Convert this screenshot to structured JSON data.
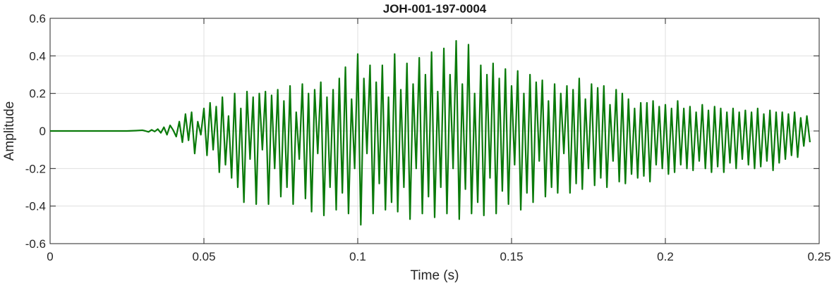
{
  "chart_data": {
    "type": "line",
    "title": "JOH-001-197-0004",
    "xlabel": "Time (s)",
    "ylabel": "Amplitude",
    "xlim": [
      0,
      0.25
    ],
    "ylim": [
      -0.6,
      0.6
    ],
    "x_ticks": [
      0,
      0.05,
      0.1,
      0.15,
      0.2,
      0.25
    ],
    "y_ticks": [
      -0.6,
      -0.4,
      -0.2,
      0,
      0.2,
      0.4,
      0.6
    ],
    "x_tick_labels": [
      "0",
      "0.05",
      "0.1",
      "0.15",
      "0.2",
      "0.25"
    ],
    "y_tick_labels": [
      "-0.6",
      "-0.4",
      "-0.2",
      "0",
      "0.2",
      "0.4",
      "0.6"
    ],
    "grid": true,
    "line_color": "#0a7a0a",
    "series": [
      {
        "x": [
          0.0,
          0.005,
          0.01,
          0.015,
          0.02,
          0.025,
          0.028,
          0.03,
          0.031,
          0.032,
          0.033,
          0.034,
          0.035,
          0.036,
          0.037,
          0.038,
          0.039,
          0.04,
          0.041,
          0.042,
          0.043,
          0.044,
          0.045,
          0.046,
          0.047,
          0.048,
          0.049,
          0.05,
          0.051,
          0.052,
          0.053,
          0.054,
          0.055,
          0.056,
          0.057,
          0.058,
          0.059,
          0.06,
          0.061,
          0.062,
          0.063,
          0.064,
          0.065,
          0.066,
          0.067,
          0.068,
          0.069,
          0.07,
          0.071,
          0.072,
          0.073,
          0.074,
          0.075,
          0.076,
          0.077,
          0.078,
          0.079,
          0.08,
          0.081,
          0.082,
          0.083,
          0.084,
          0.085,
          0.086,
          0.087,
          0.088,
          0.089,
          0.09,
          0.091,
          0.092,
          0.093,
          0.094,
          0.095,
          0.096,
          0.097,
          0.098,
          0.099,
          0.1,
          0.101,
          0.102,
          0.103,
          0.104,
          0.105,
          0.106,
          0.107,
          0.108,
          0.109,
          0.11,
          0.111,
          0.112,
          0.113,
          0.114,
          0.115,
          0.116,
          0.117,
          0.118,
          0.119,
          0.12,
          0.121,
          0.122,
          0.123,
          0.124,
          0.125,
          0.126,
          0.127,
          0.128,
          0.129,
          0.13,
          0.131,
          0.132,
          0.133,
          0.134,
          0.135,
          0.136,
          0.137,
          0.138,
          0.139,
          0.14,
          0.141,
          0.142,
          0.143,
          0.144,
          0.145,
          0.146,
          0.147,
          0.148,
          0.149,
          0.15,
          0.151,
          0.152,
          0.153,
          0.154,
          0.155,
          0.156,
          0.157,
          0.158,
          0.159,
          0.16,
          0.161,
          0.162,
          0.163,
          0.164,
          0.165,
          0.166,
          0.167,
          0.168,
          0.169,
          0.17,
          0.171,
          0.172,
          0.173,
          0.174,
          0.175,
          0.176,
          0.177,
          0.178,
          0.179,
          0.18,
          0.181,
          0.182,
          0.183,
          0.184,
          0.185,
          0.186,
          0.187,
          0.188,
          0.189,
          0.19,
          0.191,
          0.192,
          0.193,
          0.194,
          0.195,
          0.196,
          0.197,
          0.198,
          0.199,
          0.2,
          0.201,
          0.202,
          0.203,
          0.204,
          0.205,
          0.206,
          0.207,
          0.208,
          0.209,
          0.21,
          0.211,
          0.212,
          0.213,
          0.214,
          0.215,
          0.216,
          0.217,
          0.218,
          0.219,
          0.22,
          0.221,
          0.222,
          0.223,
          0.224,
          0.225,
          0.226,
          0.227,
          0.228,
          0.229,
          0.23,
          0.231,
          0.232,
          0.233,
          0.234,
          0.235,
          0.236,
          0.237,
          0.238,
          0.239,
          0.24,
          0.241,
          0.242,
          0.243,
          0.244,
          0.245,
          0.246,
          0.247
        ],
        "y": [
          0.0,
          0.0,
          0.0,
          0.0,
          0.0,
          0.0,
          0.002,
          0.004,
          0.0,
          -0.005,
          0.006,
          -0.003,
          0.01,
          -0.01,
          0.02,
          -0.02,
          0.03,
          0.005,
          -0.03,
          0.05,
          -0.06,
          0.09,
          -0.05,
          0.1,
          -0.12,
          0.05,
          -0.02,
          0.12,
          -0.13,
          0.15,
          -0.1,
          0.13,
          -0.22,
          0.18,
          -0.18,
          0.08,
          -0.25,
          0.2,
          -0.3,
          0.12,
          -0.38,
          0.21,
          -0.15,
          0.18,
          -0.39,
          0.2,
          -0.1,
          0.21,
          -0.39,
          0.19,
          -0.2,
          0.22,
          -0.35,
          0.16,
          -0.3,
          0.24,
          -0.39,
          0.1,
          -0.15,
          0.25,
          -0.36,
          0.2,
          -0.43,
          0.22,
          -0.12,
          0.26,
          -0.45,
          0.18,
          -0.3,
          0.22,
          -0.42,
          0.28,
          -0.33,
          0.34,
          -0.44,
          0.17,
          -0.2,
          0.41,
          -0.5,
          0.28,
          -0.12,
          0.35,
          -0.44,
          0.26,
          -0.28,
          0.35,
          -0.42,
          0.18,
          -0.38,
          0.41,
          -0.43,
          0.22,
          -0.3,
          0.36,
          -0.47,
          0.25,
          -0.2,
          0.39,
          -0.44,
          0.3,
          -0.35,
          0.42,
          -0.46,
          0.21,
          -0.3,
          0.44,
          -0.44,
          0.3,
          -0.2,
          0.48,
          -0.47,
          0.25,
          -0.31,
          0.46,
          -0.44,
          0.2,
          -0.38,
          0.35,
          -0.45,
          0.3,
          -0.25,
          0.36,
          -0.44,
          0.28,
          -0.32,
          0.33,
          -0.39,
          0.24,
          -0.18,
          0.32,
          -0.42,
          0.2,
          -0.33,
          0.3,
          -0.38,
          0.26,
          -0.16,
          0.27,
          -0.35,
          0.16,
          -0.3,
          0.25,
          -0.33,
          0.2,
          -0.12,
          0.24,
          -0.33,
          0.22,
          -0.28,
          0.28,
          -0.31,
          0.17,
          -0.2,
          0.25,
          -0.29,
          0.23,
          -0.25,
          0.24,
          -0.3,
          0.14,
          -0.16,
          0.22,
          -0.27,
          0.2,
          -0.28,
          0.17,
          -0.23,
          0.12,
          -0.25,
          0.15,
          -0.24,
          0.15,
          -0.27,
          0.16,
          -0.18,
          0.13,
          -0.2,
          0.14,
          -0.23,
          0.12,
          -0.22,
          0.16,
          -0.18,
          0.12,
          -0.2,
          0.13,
          -0.21,
          0.1,
          -0.16,
          0.14,
          -0.2,
          0.11,
          -0.22,
          0.13,
          -0.19,
          0.12,
          -0.22,
          0.1,
          -0.17,
          0.12,
          -0.2,
          0.1,
          -0.15,
          0.11,
          -0.18,
          0.1,
          -0.2,
          0.12,
          -0.19,
          0.09,
          -0.16,
          0.11,
          -0.21,
          0.1,
          -0.17,
          0.1,
          -0.15,
          0.09,
          -0.13,
          0.1,
          -0.14,
          0.07,
          -0.08,
          0.08,
          -0.06
        ]
      }
    ]
  }
}
